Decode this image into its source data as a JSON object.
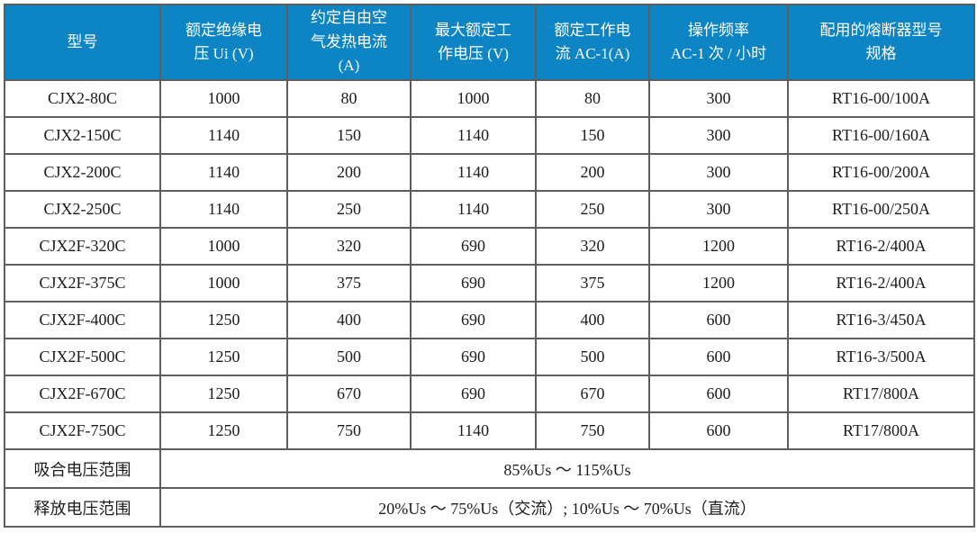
{
  "table": {
    "columns": [
      "型号",
      "额定绝缘电\n压 Ui (V)",
      "约定自由空\n气发热电流\n(A)",
      "最大额定工\n作电压 (V)",
      "额定工作电\n流 AC-1(A)",
      "操作频率\nAC-1 次 / 小时",
      "配用的熔断器型号\n规格"
    ],
    "rows": [
      {
        "model": "CJX2-80C",
        "values": [
          "1000",
          "80",
          "1000",
          "80",
          "300",
          "RT16-00/100A"
        ]
      },
      {
        "model": "CJX2-150C",
        "values": [
          "1140",
          "150",
          "1140",
          "150",
          "300",
          "RT16-00/160A"
        ]
      },
      {
        "model": "CJX2-200C",
        "values": [
          "1140",
          "200",
          "1140",
          "200",
          "300",
          "RT16-00/200A"
        ]
      },
      {
        "model": "CJX2-250C",
        "values": [
          "1140",
          "250",
          "1140",
          "250",
          "300",
          "RT16-00/250A"
        ]
      },
      {
        "model": "CJX2F-320C",
        "values": [
          "1000",
          "320",
          "690",
          "320",
          "1200",
          "RT16-2/400A"
        ]
      },
      {
        "model": "CJX2F-375C",
        "values": [
          "1000",
          "375",
          "690",
          "375",
          "1200",
          "RT16-2/400A"
        ]
      },
      {
        "model": "CJX2F-400C",
        "values": [
          "1250",
          "400",
          "690",
          "400",
          "600",
          "RT16-3/450A"
        ]
      },
      {
        "model": "CJX2F-500C",
        "values": [
          "1250",
          "500",
          "690",
          "500",
          "600",
          "RT16-3/500A"
        ]
      },
      {
        "model": "CJX2F-670C",
        "values": [
          "1250",
          "670",
          "690",
          "670",
          "600",
          "RT17/800A"
        ]
      },
      {
        "model": "CJX2F-750C",
        "values": [
          "1250",
          "750",
          "1140",
          "750",
          "600",
          "RT17/800A"
        ]
      }
    ],
    "footer": [
      {
        "label": "吸合电压范围",
        "value": "85%Us ～ 115%Us"
      },
      {
        "label": "释放电压范围",
        "value": "20%Us ～ 75%Us（交流）; 10%Us ～ 70%Us（直流）"
      }
    ]
  },
  "colors": {
    "header_bg": "#0d85c4",
    "header_text": "#ffffff",
    "grid_line": "#5e5e5e",
    "outer_border": "#262626",
    "body_text": "#1c1c1c"
  }
}
